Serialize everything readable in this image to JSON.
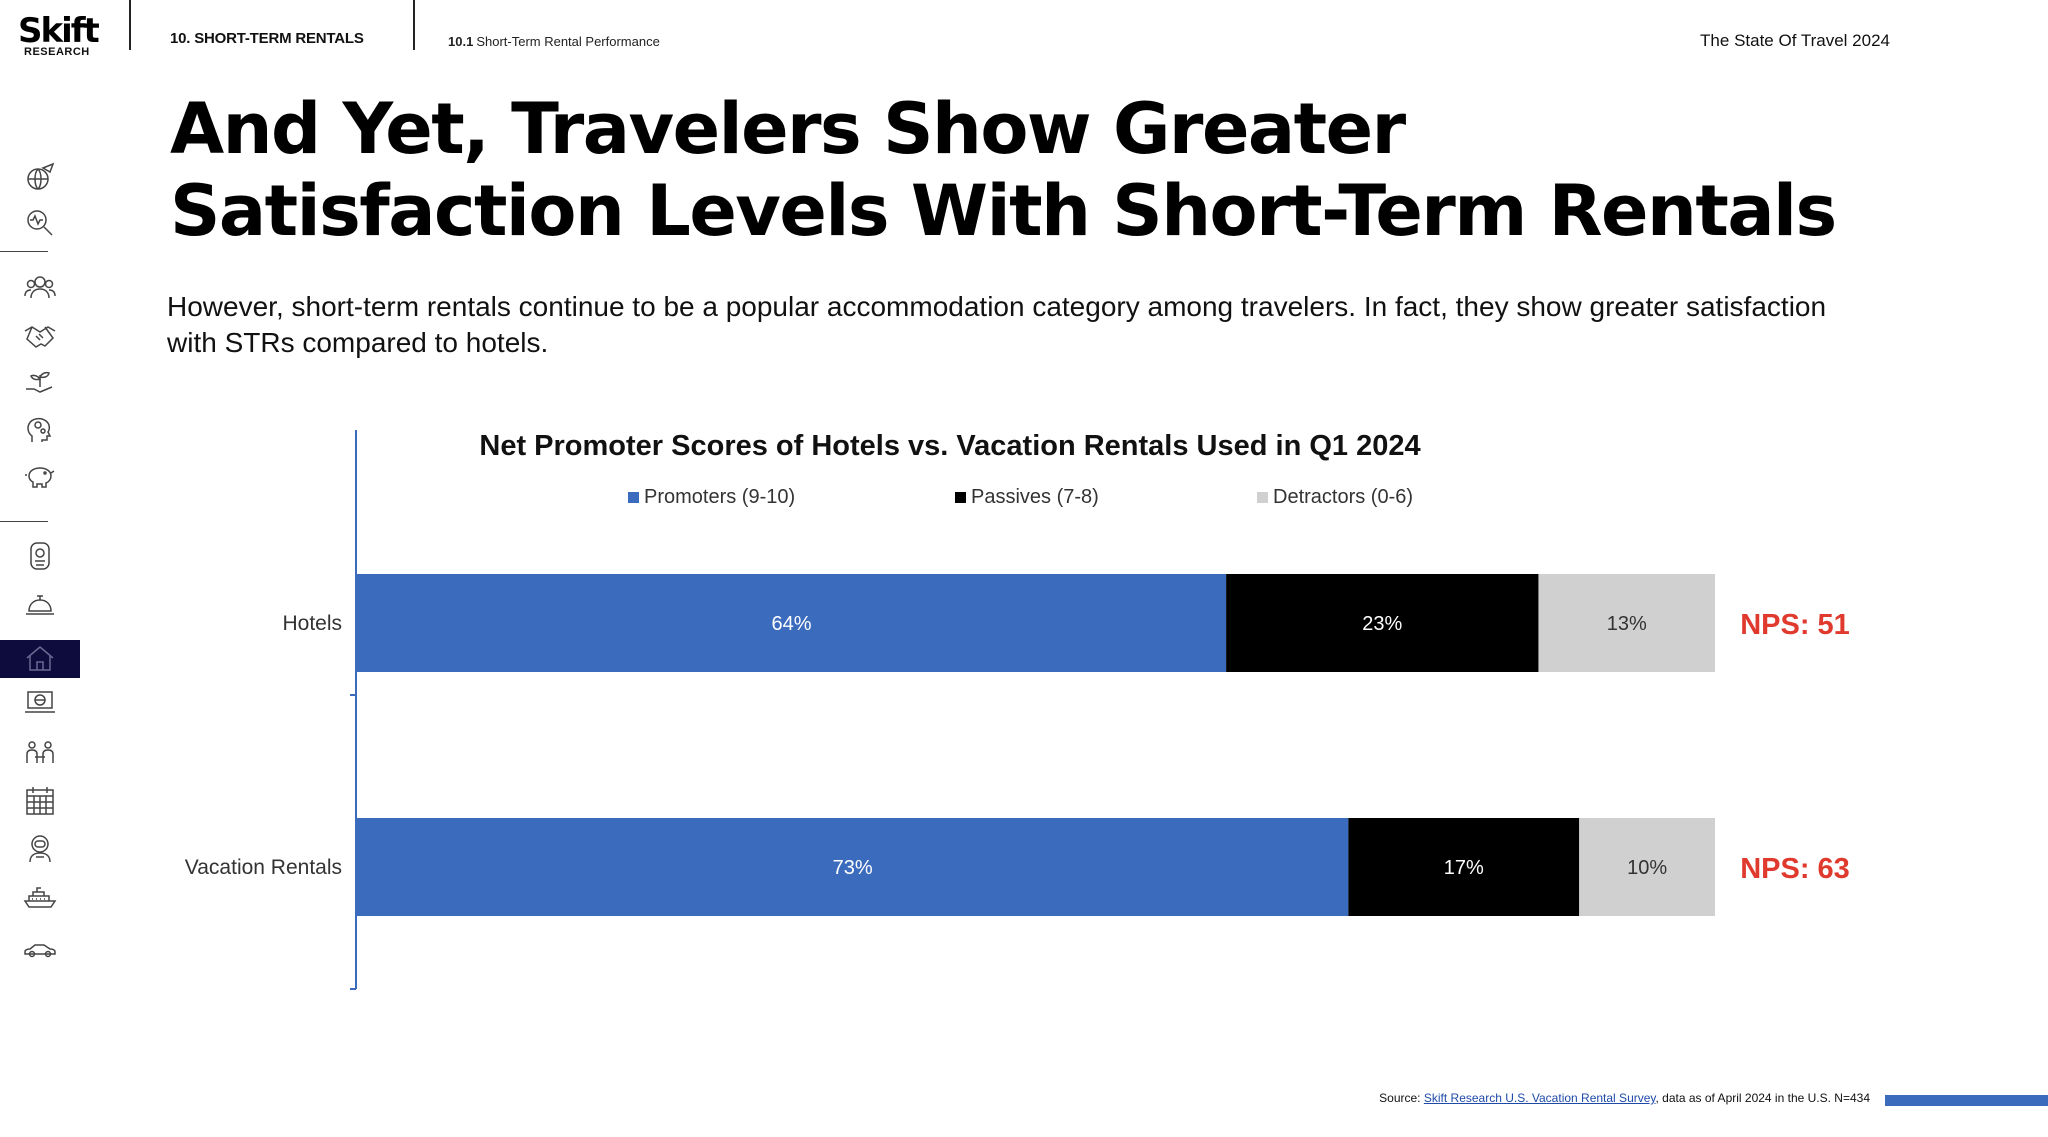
{
  "header": {
    "logo_main": "Skift",
    "logo_sub": "RESEARCH",
    "section": "10. SHORT-TERM RENTALS",
    "subsection_num": "10.1",
    "subsection_title": "Short-Term Rental Performance",
    "report": "The State Of Travel 2024"
  },
  "sidebar": {
    "icons": [
      "globe-plane-icon",
      "pulse-magnifier-icon",
      "people-group-icon",
      "handshake-icon",
      "plant-hand-icon",
      "head-gears-icon",
      "piggy-bank-icon",
      "passport-icon",
      "hotel-bell-icon",
      "house-icon",
      "laptop-globe-icon",
      "meeting-people-icon",
      "calendar-icon",
      "astronaut-icon",
      "cruise-ship-icon",
      "car-icon"
    ],
    "active": "house-icon"
  },
  "headline": "And Yet, Travelers Show Greater Satisfaction Levels With Short-Term Rentals",
  "subtitle": "However, short-term rentals continue to be a popular accommodation category among travelers. In fact, they show greater satisfaction with STRs compared to hotels.",
  "chart_data": {
    "type": "bar",
    "orientation": "horizontal",
    "stacked": true,
    "title": "Net Promoter Scores of Hotels vs. Vacation Rentals Used in Q1 2024",
    "categories": [
      "Hotels",
      "Vacation Rentals"
    ],
    "series": [
      {
        "name": "Promoters (9-10)",
        "values": [
          64,
          73
        ],
        "labels": [
          "64%",
          "73%"
        ],
        "color": "#3a6bbd"
      },
      {
        "name": "Passives (7-8)",
        "values": [
          23,
          17
        ],
        "labels": [
          "23%",
          "17%"
        ],
        "color": "#000000"
      },
      {
        "name": "Detractors (0-6)",
        "values": [
          13,
          10
        ],
        "labels": [
          "13%",
          "10%"
        ],
        "color": "#d0d0d0"
      }
    ],
    "annotations": [
      "NPS: 51",
      "NPS: 63"
    ],
    "annotation_color": "#e03a2f",
    "xlim": [
      0,
      100
    ],
    "legend": "top",
    "grid": false
  },
  "source": {
    "prefix": "Source: ",
    "link": "Skift Research U.S. Vacation Rental Survey",
    "suffix": ", data as of April 2024 in the U.S. N=434"
  }
}
